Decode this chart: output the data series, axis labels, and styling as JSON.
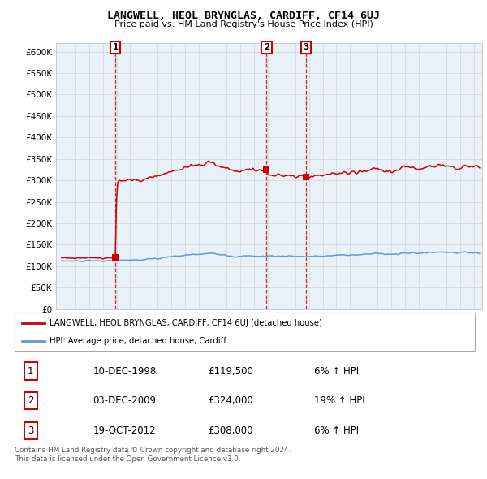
{
  "title": "LANGWELL, HEOL BRYNGLAS, CARDIFF, CF14 6UJ",
  "subtitle": "Price paid vs. HM Land Registry's House Price Index (HPI)",
  "legend_label_red": "LANGWELL, HEOL BRYNGLAS, CARDIFF, CF14 6UJ (detached house)",
  "legend_label_blue": "HPI: Average price, detached house, Cardiff",
  "t_years": [
    1998.92,
    2009.92,
    2012.79
  ],
  "t_prices": [
    119500,
    324000,
    308000
  ],
  "t_labels": [
    "1",
    "2",
    "3"
  ],
  "footer1": "Contains HM Land Registry data © Crown copyright and database right 2024.",
  "footer2": "This data is licensed under the Open Government Licence v3.0.",
  "ylim": [
    0,
    620000
  ],
  "yticks": [
    0,
    50000,
    100000,
    150000,
    200000,
    250000,
    300000,
    350000,
    400000,
    450000,
    500000,
    550000,
    600000
  ],
  "color_red": "#cc0000",
  "color_blue": "#6699cc",
  "color_grid": "#cccccc",
  "bg_color": "#ffffff",
  "chart_bg": "#e8f0f8"
}
